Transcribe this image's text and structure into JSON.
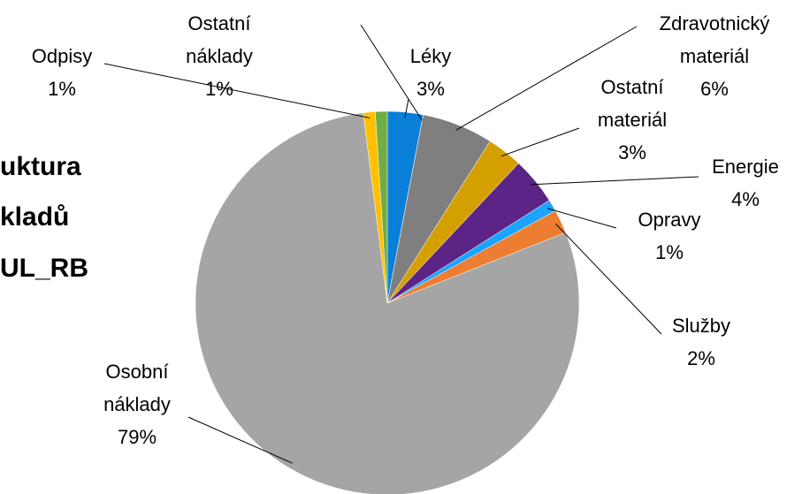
{
  "chart_data": {
    "type": "pie",
    "title_lines": [
      "uktura",
      "kladů",
      "UL_RB"
    ],
    "categories": [
      "Léky",
      null,
      "Zdravotnický materiál",
      "Ostatní materiál",
      "Energie",
      "Opravy",
      "Služby",
      "Osobní náklady",
      "Odpisy",
      "Ostatní náklady"
    ],
    "values": [
      3,
      0,
      6,
      3,
      4,
      1,
      2,
      79,
      1,
      1
    ],
    "value_labels": [
      "3%",
      null,
      "6%",
      "3%",
      "4%",
      "1%",
      "2%",
      "79%",
      "1%",
      "1%"
    ],
    "colors": [
      "#0a7fd8",
      "#c55a11",
      "#7f7f7f",
      "#d4a000",
      "#5b2486",
      "#1aa3ff",
      "#ed7d31",
      "#a5a5a5",
      "#ffc000",
      "#70ad47"
    ]
  }
}
